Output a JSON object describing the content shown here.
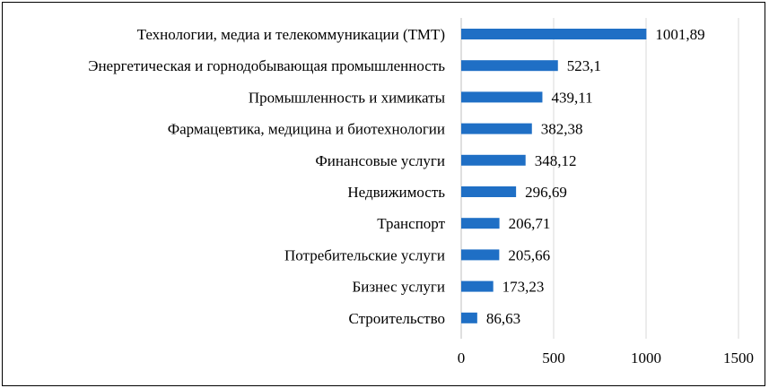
{
  "chart_data": {
    "type": "bar",
    "orientation": "horizontal",
    "categories": [
      "Технологии, медиа и телекоммуникации (ТМТ)",
      "Энергетическая и горнодобывающая промышленность",
      "Промышленность и химикаты",
      "Фармацевтика, медицина и биотехнологии",
      "Финансовые услуги",
      "Недвижимость",
      "Транспорт",
      "Потребительские услуги",
      "Бизнес услуги",
      "Строительство"
    ],
    "values": [
      1001.89,
      523.1,
      439.11,
      382.38,
      348.12,
      296.69,
      206.71,
      205.66,
      173.23,
      86.63
    ],
    "value_labels": [
      "1001,89",
      "523,1",
      "439,11",
      "382,38",
      "348,12",
      "296,69",
      "206,71",
      "205,66",
      "173,23",
      "86,63"
    ],
    "xlim": [
      0,
      1500
    ],
    "xticks": [
      0,
      500,
      1000,
      1500
    ],
    "xtick_labels": [
      "0",
      "500",
      "1000",
      "1500"
    ],
    "grid": "vertical",
    "bar_color": "#1f6fc5",
    "grid_color": "#d9d9d9",
    "title": "",
    "xlabel": "",
    "ylabel": ""
  }
}
